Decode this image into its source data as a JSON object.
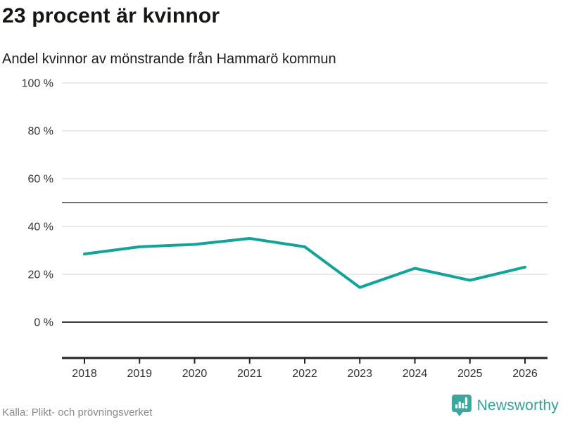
{
  "header": {
    "title": "23 procent är kvinnor",
    "subtitle": "Andel kvinnor av mönstrande från Hammarö kommun"
  },
  "footer": {
    "source": "Källa: Plikt- och prövningsverket",
    "brand": "Newsworthy"
  },
  "chart_data": {
    "type": "line",
    "title": "23 procent är kvinnor",
    "subtitle": "Andel kvinnor av mönstrande från Hammarö kommun",
    "x": [
      2018,
      2019,
      2020,
      2021,
      2022,
      2023,
      2024,
      2025,
      2026
    ],
    "series": [
      {
        "name": "Andel kvinnor av mönstrande",
        "values": [
          28.5,
          31.5,
          32.5,
          35,
          31.5,
          14.5,
          22.5,
          17.5,
          23
        ]
      }
    ],
    "ylim": [
      0,
      100
    ],
    "y_ticks": [
      0,
      20,
      40,
      60,
      80,
      100
    ],
    "y_tick_suffix": " %",
    "reference_line": 50,
    "grid": true,
    "legend": "none",
    "colors": {
      "line": "#12a39a",
      "grid": "#e4e4e4",
      "reference_line": "#6f6f6f",
      "zero_line": "#3a3a3a",
      "axis": "#222222",
      "tick_label": "#333333",
      "source_text": "#8a8a8a",
      "brand_teal": "#3fa69d",
      "brand_text": "#35a09a"
    }
  }
}
